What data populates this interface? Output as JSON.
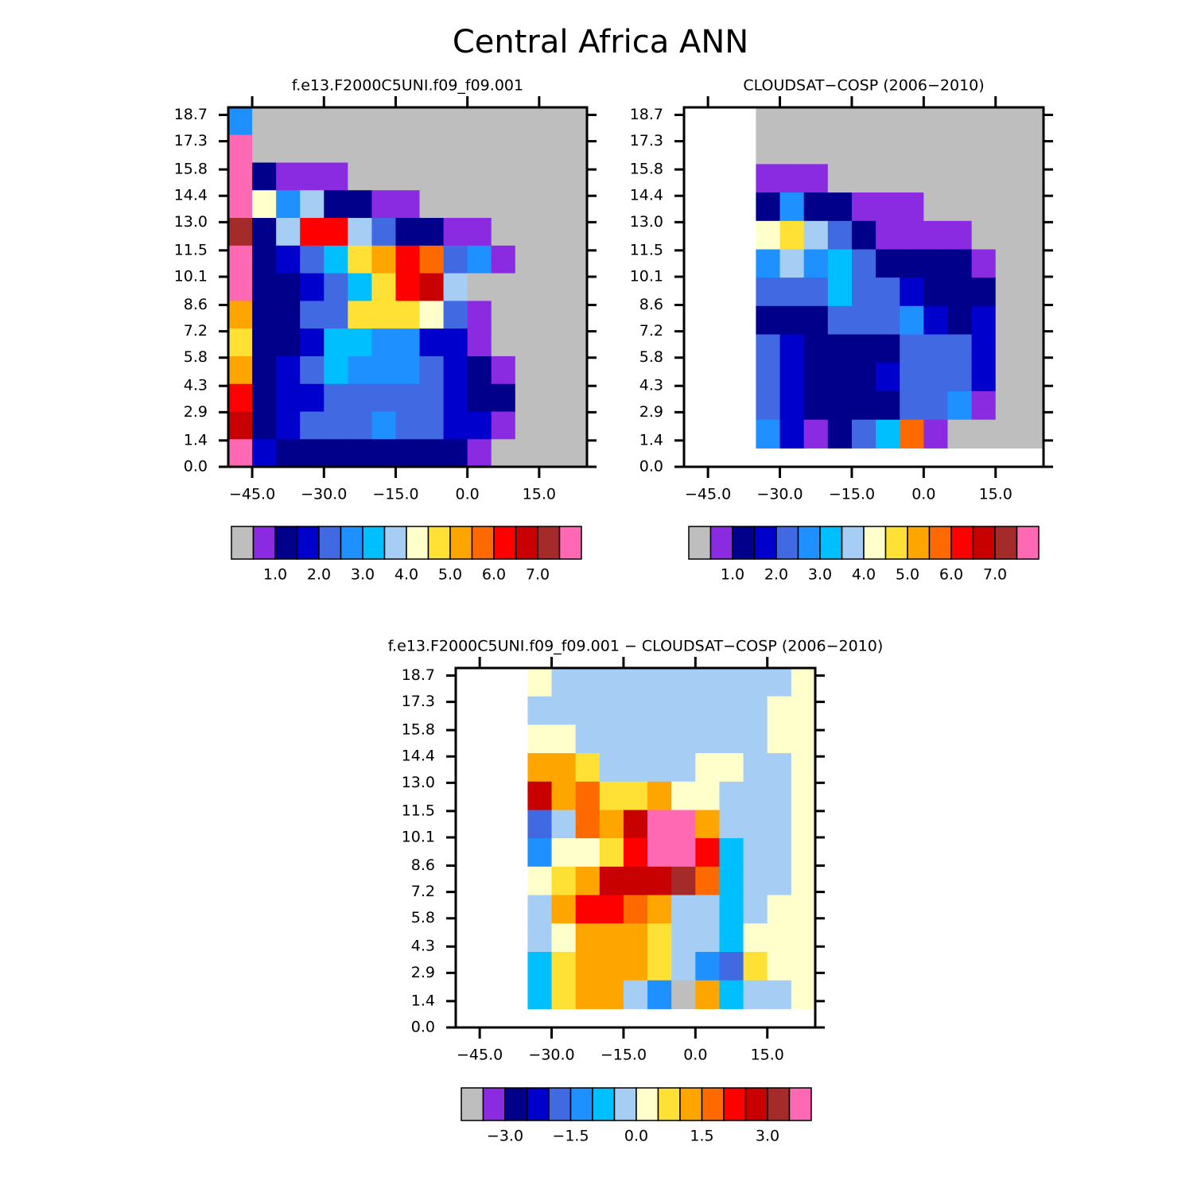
{
  "title": "Central Africa ANN",
  "chart_data": [
    {
      "type": "heatmap",
      "title": "f.e13.F2000C5UNI.f09_f09.001",
      "x": [
        -47.5,
        -42.5,
        -37.5,
        -32.5,
        -27.5,
        -22.5,
        -17.5,
        -12.5,
        -7.5,
        -2.5,
        2.5,
        7.5,
        12.5,
        17.5,
        22.5
      ],
      "y": [
        18.37,
        16.9,
        15.43,
        13.96,
        12.49,
        11.02,
        9.55,
        8.08,
        6.61,
        5.14,
        3.67,
        2.2,
        0.73
      ],
      "z": [
        [
          2.75,
          null,
          null,
          null,
          null,
          null,
          null,
          null,
          null,
          null,
          null,
          null,
          null,
          null,
          null
        ],
        [
          7.75,
          null,
          null,
          null,
          null,
          null,
          null,
          null,
          null,
          null,
          null,
          null,
          null,
          null,
          null
        ],
        [
          7.75,
          1.25,
          0.75,
          0.75,
          0.75,
          null,
          null,
          null,
          null,
          null,
          null,
          null,
          null,
          null,
          null
        ],
        [
          7.75,
          4.25,
          2.75,
          3.75,
          1.25,
          1.25,
          0.75,
          0.75,
          null,
          null,
          null,
          null,
          null,
          null,
          null
        ],
        [
          7.25,
          1.25,
          3.75,
          6.25,
          6.25,
          3.75,
          2.25,
          1.25,
          1.25,
          0.75,
          0.75,
          null,
          null,
          null,
          null
        ],
        [
          7.75,
          1.25,
          1.75,
          2.25,
          3.25,
          4.75,
          5.25,
          6.25,
          5.75,
          2.25,
          2.75,
          0.75,
          null,
          null,
          null
        ],
        [
          7.75,
          1.25,
          1.25,
          1.75,
          2.25,
          3.25,
          4.75,
          6.25,
          6.75,
          3.75,
          null,
          null,
          null,
          null,
          null
        ],
        [
          5.25,
          1.25,
          1.25,
          2.25,
          2.25,
          4.75,
          4.75,
          4.75,
          4.25,
          2.25,
          0.75,
          null,
          null,
          null,
          null
        ],
        [
          4.75,
          1.25,
          1.25,
          1.75,
          3.25,
          3.25,
          2.75,
          2.75,
          1.75,
          1.75,
          0.75,
          null,
          null,
          null,
          null
        ],
        [
          5.25,
          1.25,
          1.75,
          2.25,
          3.25,
          2.75,
          2.75,
          2.75,
          2.25,
          1.75,
          1.25,
          0.75,
          null,
          null,
          null
        ],
        [
          6.25,
          1.25,
          1.75,
          1.75,
          2.25,
          2.25,
          2.25,
          2.25,
          2.25,
          1.75,
          1.25,
          1.25,
          null,
          null,
          null
        ],
        [
          6.75,
          1.25,
          1.75,
          2.25,
          2.25,
          2.25,
          2.75,
          2.25,
          2.25,
          1.75,
          1.75,
          0.75,
          null,
          null,
          null
        ],
        [
          7.75,
          1.75,
          1.25,
          1.25,
          1.25,
          1.25,
          1.25,
          1.25,
          1.25,
          1.25,
          0.75,
          null,
          null,
          null,
          null
        ]
      ],
      "xlim": [
        -50,
        25
      ],
      "ylim": [
        0,
        19.1
      ],
      "xticks": [
        {
          "value": -45,
          "label": "−45.0"
        },
        {
          "value": -30,
          "label": "−30.0"
        },
        {
          "value": -15,
          "label": "−15.0"
        },
        {
          "value": 0,
          "label": "0.0"
        },
        {
          "value": 15,
          "label": "15.0"
        }
      ],
      "yticks": [
        {
          "value": 0,
          "label": "0.0"
        },
        1.4,
        2.9,
        4.3,
        5.8,
        7.2,
        8.6,
        10.1,
        11.5,
        {
          "value": 13,
          "label": "13.0"
        },
        14.4,
        15.8,
        17.3,
        18.7
      ],
      "levels": [
        1,
        1.5,
        2,
        2.5,
        3,
        3.5,
        4,
        4.5,
        5,
        5.5,
        6,
        6.5,
        7,
        7.5
      ],
      "colors": [
        "#8a2be2",
        "#00008b",
        "#0000cd",
        "#4169e1",
        "#1e90ff",
        "#00bfff",
        "#a6cef5",
        "#ffffcc",
        "#ffe135",
        "#ffa500",
        "#ff6a00",
        "#ff0000",
        "#c80000",
        "#a52a2a",
        "#ff69b4"
      ],
      "missing_color": "#bebebe",
      "colorbar_ticks": [
        {
          "value": 1,
          "label": "1.0"
        },
        {
          "value": 2,
          "label": "2.0"
        },
        {
          "value": 3,
          "label": "3.0"
        },
        {
          "value": 4,
          "label": "4.0"
        },
        {
          "value": 5,
          "label": "5.0"
        },
        {
          "value": 6,
          "label": "6.0"
        },
        {
          "value": 7,
          "label": "7.0"
        }
      ]
    },
    {
      "type": "heatmap",
      "title": "CLOUDSAT−COSP (2006−2010)",
      "x": [
        -32.5,
        -27.5,
        -22.5,
        -17.5,
        -12.5,
        -7.5,
        -2.5,
        2.5,
        7.5,
        12.5,
        17.5,
        22.5
      ],
      "y": [
        18.35,
        16.84,
        15.33,
        13.82,
        12.31,
        10.8,
        9.3,
        7.79,
        6.28,
        4.77,
        3.26,
        1.75
      ],
      "z": [
        [
          null,
          null,
          null,
          null,
          null,
          null,
          null,
          null,
          null,
          null,
          null,
          null
        ],
        [
          null,
          null,
          null,
          null,
          null,
          null,
          null,
          null,
          null,
          null,
          null,
          null
        ],
        [
          0.75,
          0.75,
          0.75,
          null,
          null,
          null,
          null,
          null,
          null,
          null,
          null,
          null
        ],
        [
          1.25,
          2.75,
          1.25,
          1.25,
          0.75,
          0.75,
          0.75,
          null,
          null,
          null,
          null,
          null
        ],
        [
          4.25,
          4.75,
          3.75,
          2.25,
          1.25,
          0.75,
          0.75,
          0.75,
          0.75,
          null,
          null,
          null
        ],
        [
          2.75,
          3.75,
          2.75,
          3.25,
          2.25,
          1.25,
          1.25,
          1.25,
          1.25,
          0.75,
          null,
          null
        ],
        [
          2.25,
          2.25,
          2.25,
          3.25,
          2.25,
          2.25,
          1.75,
          1.25,
          1.25,
          1.25,
          null,
          null
        ],
        [
          1.25,
          1.25,
          1.25,
          2.25,
          2.25,
          2.25,
          2.75,
          1.75,
          1.25,
          1.75,
          null,
          null
        ],
        [
          2.25,
          1.75,
          1.25,
          1.25,
          1.25,
          1.25,
          2.25,
          2.25,
          2.25,
          1.75,
          null,
          null
        ],
        [
          2.25,
          1.75,
          1.25,
          1.25,
          1.25,
          1.75,
          2.25,
          2.25,
          2.25,
          1.75,
          null,
          null
        ],
        [
          2.25,
          1.75,
          1.25,
          1.25,
          1.25,
          1.25,
          2.25,
          2.25,
          2.75,
          0.75,
          null,
          null
        ],
        [
          2.75,
          1.75,
          0.75,
          1.25,
          2.25,
          3.25,
          5.75,
          0.75,
          null,
          null,
          null,
          null
        ]
      ],
      "xlim": [
        -50,
        25
      ],
      "ylim": [
        0,
        19.1
      ],
      "xticks": [
        {
          "value": -45,
          "label": "−45.0"
        },
        {
          "value": -30,
          "label": "−30.0"
        },
        {
          "value": -15,
          "label": "−15.0"
        },
        {
          "value": 0,
          "label": "0.0"
        },
        {
          "value": 15,
          "label": "15.0"
        }
      ],
      "yticks": [
        {
          "value": 0,
          "label": "0.0"
        },
        1.4,
        2.9,
        4.3,
        5.8,
        7.2,
        8.6,
        10.1,
        11.5,
        {
          "value": 13,
          "label": "13.0"
        },
        14.4,
        15.8,
        17.3,
        18.7
      ],
      "levels": [
        1,
        1.5,
        2,
        2.5,
        3,
        3.5,
        4,
        4.5,
        5,
        5.5,
        6,
        6.5,
        7,
        7.5
      ],
      "colors": [
        "#8a2be2",
        "#00008b",
        "#0000cd",
        "#4169e1",
        "#1e90ff",
        "#00bfff",
        "#a6cef5",
        "#ffffcc",
        "#ffe135",
        "#ffa500",
        "#ff6a00",
        "#ff0000",
        "#c80000",
        "#a52a2a",
        "#ff69b4"
      ],
      "missing_color": "#bebebe",
      "colorbar_ticks": [
        {
          "value": 1,
          "label": "1.0"
        },
        {
          "value": 2,
          "label": "2.0"
        },
        {
          "value": 3,
          "label": "3.0"
        },
        {
          "value": 4,
          "label": "4.0"
        },
        {
          "value": 5,
          "label": "5.0"
        },
        {
          "value": 6,
          "label": "6.0"
        },
        {
          "value": 7,
          "label": "7.0"
        }
      ]
    },
    {
      "type": "heatmap",
      "title": "f.e13.F2000C5UNI.f09_f09.001 − CLOUDSAT−COSP (2006−2010)",
      "x": [
        -32.5,
        -27.5,
        -22.5,
        -17.5,
        -12.5,
        -7.5,
        -2.5,
        2.5,
        7.5,
        12.5,
        17.5,
        22.5
      ],
      "y": [
        18.35,
        16.84,
        15.33,
        13.82,
        12.31,
        10.8,
        9.3,
        7.79,
        6.28,
        4.77,
        3.26,
        1.75
      ],
      "z": [
        [
          0.25,
          -0.25,
          -0.25,
          -0.25,
          -0.25,
          -0.25,
          -0.25,
          -0.25,
          -0.25,
          -0.25,
          -0.25,
          0.25
        ],
        [
          -0.25,
          -0.25,
          -0.25,
          -0.25,
          -0.25,
          -0.25,
          -0.25,
          -0.25,
          -0.25,
          -0.25,
          0.25,
          0.25
        ],
        [
          0.25,
          0.25,
          -0.25,
          -0.25,
          -0.25,
          -0.25,
          -0.25,
          -0.25,
          -0.25,
          -0.25,
          0.25,
          0.25
        ],
        [
          1.25,
          1.25,
          0.75,
          -0.25,
          -0.25,
          -0.25,
          -0.25,
          0.25,
          0.25,
          -0.25,
          -0.25,
          0.25
        ],
        [
          2.75,
          1.25,
          1.75,
          0.75,
          0.75,
          1.25,
          0.25,
          0.25,
          -0.25,
          -0.25,
          -0.25,
          0.25
        ],
        [
          -1.75,
          -0.25,
          1.75,
          1.25,
          2.75,
          3.75,
          3.75,
          1.25,
          -0.25,
          -0.25,
          -0.25,
          0.25
        ],
        [
          -1.25,
          0.25,
          0.25,
          0.75,
          2.25,
          3.75,
          3.75,
          2.25,
          -0.75,
          -0.25,
          -0.25,
          0.25
        ],
        [
          0.25,
          0.75,
          1.25,
          2.75,
          2.75,
          2.75,
          3.25,
          1.75,
          -0.75,
          -0.25,
          -0.25,
          0.25
        ],
        [
          -0.25,
          1.25,
          2.25,
          2.25,
          1.75,
          1.25,
          -0.25,
          -0.25,
          -0.75,
          -0.25,
          0.25,
          0.25
        ],
        [
          -0.25,
          0.25,
          1.25,
          1.25,
          1.25,
          0.75,
          -0.25,
          -0.25,
          -0.75,
          0.25,
          0.25,
          0.25
        ],
        [
          -0.75,
          0.75,
          1.25,
          1.25,
          1.25,
          0.75,
          -0.25,
          -1.25,
          -1.75,
          0.75,
          0.25,
          0.25
        ],
        [
          -0.75,
          0.75,
          1.25,
          1.25,
          -0.25,
          -1.25,
          null,
          1.25,
          -0.75,
          -0.25,
          -0.25,
          0.25
        ]
      ],
      "xlim": [
        -50,
        25
      ],
      "ylim": [
        0,
        19.1
      ],
      "xticks": [
        {
          "value": -45,
          "label": "−45.0"
        },
        {
          "value": -30,
          "label": "−30.0"
        },
        {
          "value": -15,
          "label": "−15.0"
        },
        {
          "value": 0,
          "label": "0.0"
        },
        {
          "value": 15,
          "label": "15.0"
        }
      ],
      "yticks": [
        {
          "value": 0,
          "label": "0.0"
        },
        1.4,
        2.9,
        4.3,
        5.8,
        7.2,
        8.6,
        10.1,
        11.5,
        {
          "value": 13,
          "label": "13.0"
        },
        14.4,
        15.8,
        17.3,
        18.7
      ],
      "levels": [
        -3,
        -2.5,
        -2,
        -1.5,
        -1,
        -0.5,
        0,
        0.5,
        1,
        1.5,
        2,
        2.5,
        3,
        3.5
      ],
      "colors": [
        "#8a2be2",
        "#00008b",
        "#0000cd",
        "#4169e1",
        "#1e90ff",
        "#00bfff",
        "#a6cef5",
        "#ffffcc",
        "#ffe135",
        "#ffa500",
        "#ff6a00",
        "#ff0000",
        "#c80000",
        "#a52a2a",
        "#ff69b4"
      ],
      "missing_color": "#bebebe",
      "colorbar_ticks": [
        {
          "value": -3,
          "label": "−3.0"
        },
        {
          "value": -1.5,
          "label": "−1.5"
        },
        {
          "value": 0,
          "label": "0.0"
        },
        {
          "value": 1.5,
          "label": "1.5"
        },
        {
          "value": 3,
          "label": "3.0"
        }
      ]
    }
  ]
}
